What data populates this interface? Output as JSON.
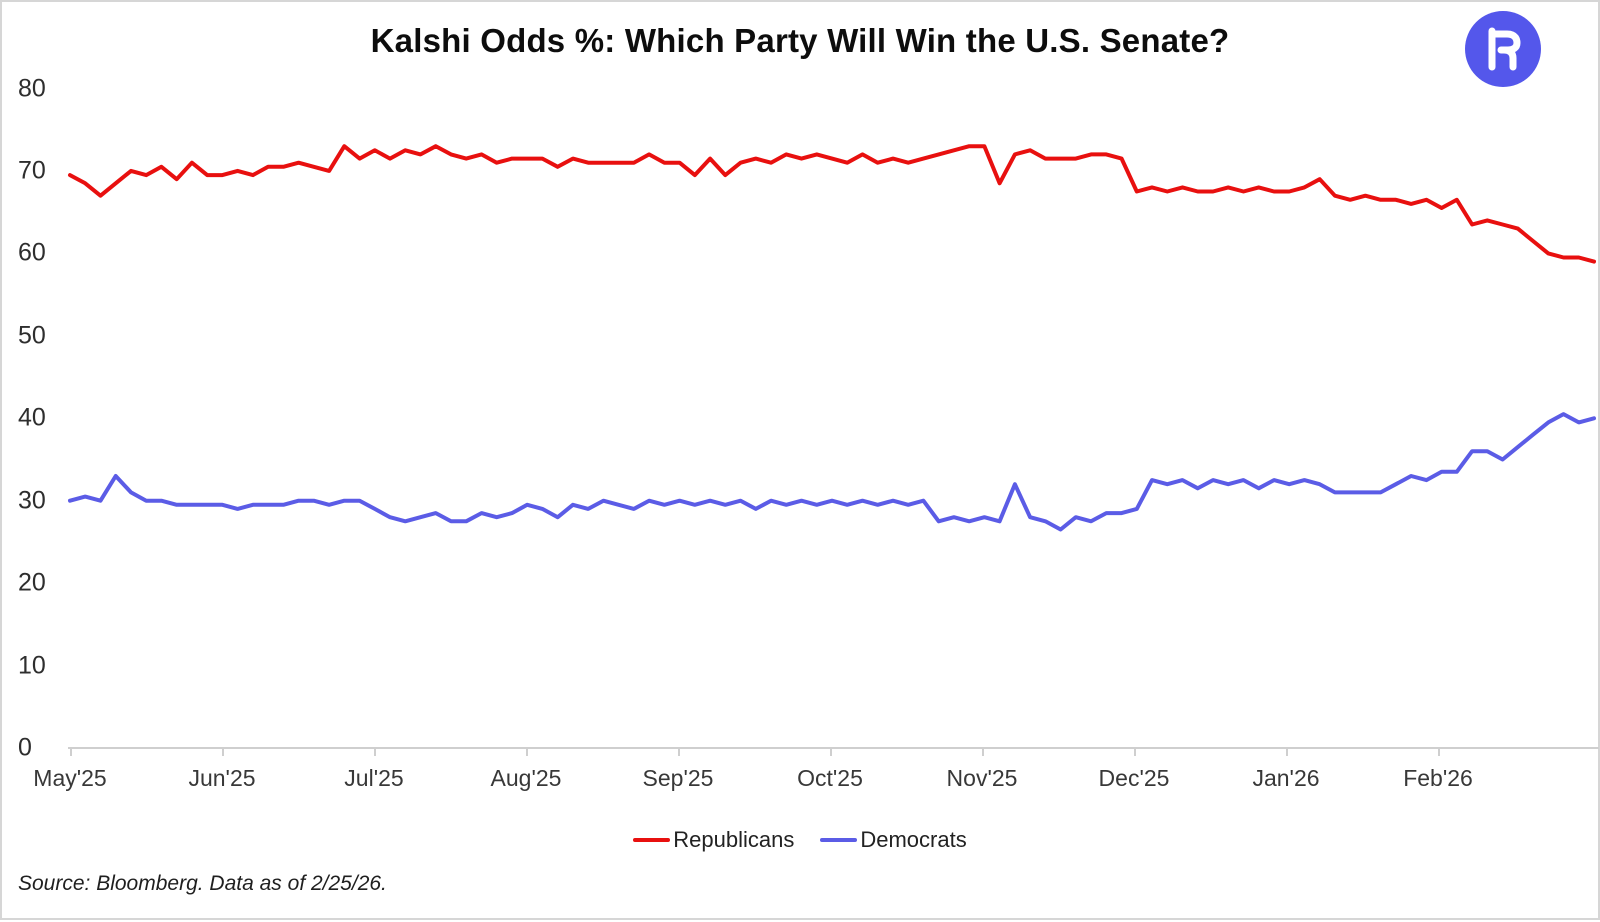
{
  "title": "Kalshi Odds %: Which Party Will Win the U.S. Senate?",
  "logo": {
    "glyph": "R",
    "circle_color": "#5457eb",
    "glyph_color": "#ffffff"
  },
  "source_note": "Source: Bloomberg. Data as of 2/25/26.",
  "colors": {
    "republicans": "#e8100f",
    "democrats": "#5b5ce6",
    "axis": "#cfcfcf"
  },
  "chart_data": {
    "type": "line",
    "title": "Kalshi Odds %: Which Party Will Win the U.S. Senate?",
    "xlabel": "",
    "ylabel": "",
    "ylim": [
      0,
      80
    ],
    "y_ticks": [
      0,
      10,
      20,
      30,
      40,
      50,
      60,
      70,
      80
    ],
    "x_tick_labels": [
      "May'25",
      "Jun'25",
      "Jul'25",
      "Aug'25",
      "Sep'25",
      "Oct'25",
      "Nov'25",
      "Dec'25",
      "Jan'26",
      "Feb'26"
    ],
    "start_date": "2025-05-01",
    "end_date": "2026-02-25",
    "sample_interval_days": 3,
    "grid": false,
    "legend_position": "bottom-center",
    "series": [
      {
        "name": "Republicans",
        "color": "#e8100f",
        "values": [
          69.5,
          68.5,
          67,
          68.5,
          70,
          69.5,
          70.5,
          69,
          71,
          69.5,
          69.5,
          70,
          69.5,
          70.5,
          70.5,
          71,
          70.5,
          70,
          73,
          71.5,
          72.5,
          71.5,
          72.5,
          72,
          73,
          72,
          71.5,
          72,
          71,
          71.5,
          71.5,
          71.5,
          70.5,
          71.5,
          71,
          71,
          71,
          71,
          72,
          71,
          71,
          69.5,
          71.5,
          69.5,
          71,
          71.5,
          71,
          72,
          71.5,
          72,
          71.5,
          71,
          72,
          71,
          71.5,
          71,
          71.5,
          72,
          72.5,
          73,
          73,
          68.5,
          72,
          72.5,
          71.5,
          71.5,
          71.5,
          72,
          72,
          71.5,
          67.5,
          68,
          67.5,
          68,
          67.5,
          67.5,
          68,
          67.5,
          68,
          67.5,
          67.5,
          68,
          69,
          67,
          66.5,
          67,
          66.5,
          66.5,
          66,
          66.5,
          65.5,
          66.5,
          63.5,
          64,
          63.5,
          63,
          61.5,
          60,
          59.5,
          59.5,
          59
        ]
      },
      {
        "name": "Democrats",
        "color": "#5b5ce6",
        "values": [
          30,
          30.5,
          30,
          33,
          31,
          30,
          30,
          29.5,
          29.5,
          29.5,
          29.5,
          29,
          29.5,
          29.5,
          29.5,
          30,
          30,
          29.5,
          30,
          30,
          29,
          28,
          27.5,
          28,
          28.5,
          27.5,
          27.5,
          28.5,
          28,
          28.5,
          29.5,
          29,
          28,
          29.5,
          29,
          30,
          29.5,
          29,
          30,
          29.5,
          30,
          29.5,
          30,
          29.5,
          30,
          29,
          30,
          29.5,
          30,
          29.5,
          30,
          29.5,
          30,
          29.5,
          30,
          29.5,
          30,
          27.5,
          28,
          27.5,
          28,
          27.5,
          32,
          28,
          27.5,
          26.5,
          28,
          27.5,
          28.5,
          28.5,
          29,
          32.5,
          32,
          32.5,
          31.5,
          32.5,
          32,
          32.5,
          31.5,
          32.5,
          32,
          32.5,
          32,
          31,
          31,
          31,
          31,
          32,
          33,
          32.5,
          33.5,
          33.5,
          36,
          36,
          35,
          36.5,
          38,
          39.5,
          40.5,
          39.5,
          40
        ]
      }
    ]
  }
}
